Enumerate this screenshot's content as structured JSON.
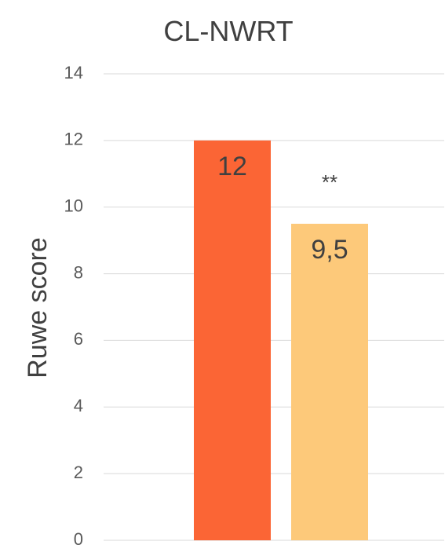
{
  "chart_data": {
    "type": "bar",
    "title": "CL-NWRT",
    "ylabel": "Ruwe score",
    "xlabel": "",
    "ylim": [
      0,
      14
    ],
    "yticks": [
      0,
      2,
      4,
      6,
      8,
      10,
      12,
      14
    ],
    "grid": true,
    "legend": "none",
    "categories": [
      "",
      ""
    ],
    "values": [
      12,
      9.5
    ],
    "data_labels": [
      "12",
      "9,5"
    ],
    "colors": [
      "#fb6535",
      "#fdc97a"
    ],
    "annotations": [
      {
        "text": "**",
        "bar_index": 1
      }
    ]
  }
}
